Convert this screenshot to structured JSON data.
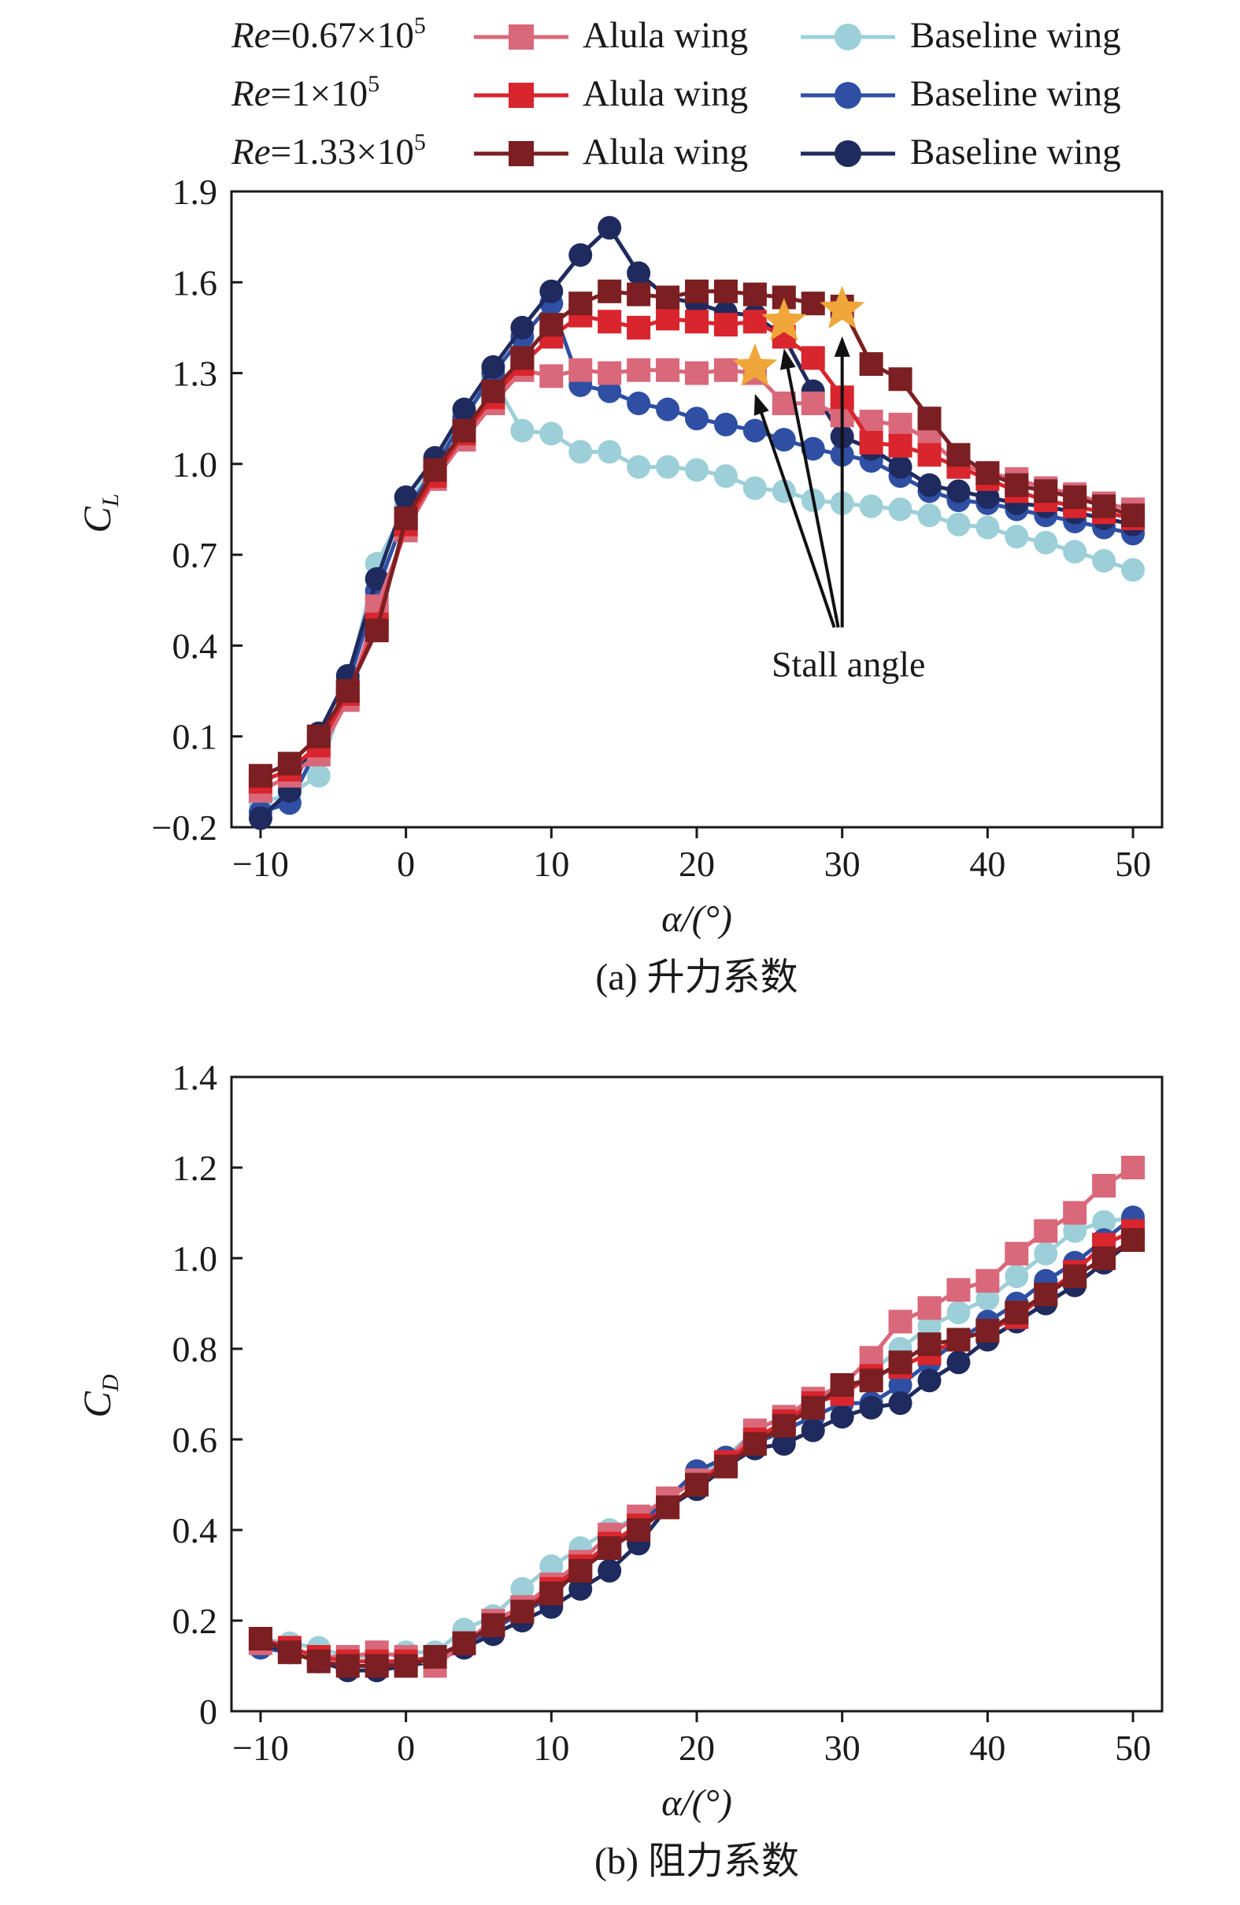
{
  "legend": {
    "rows": [
      {
        "re_prefix": "Re",
        "re_value": "=0.67×10",
        "re_exp": "5",
        "alula_label": "Alula wing",
        "baseline_label": "Baseline wing"
      },
      {
        "re_prefix": "Re",
        "re_value": "=1×10",
        "re_exp": "5",
        "alula_label": "Alula wing",
        "baseline_label": "Baseline wing"
      },
      {
        "re_prefix": "Re",
        "re_value": "=1.33×10",
        "re_exp": "5",
        "alula_label": "Alula wing",
        "baseline_label": "Baseline wing"
      }
    ]
  },
  "colors": {
    "alula": [
      "#d9687a",
      "#d9252d",
      "#7b1f22"
    ],
    "baseline": [
      "#9ccfd8",
      "#2e4fa3",
      "#1f2a5e"
    ],
    "star": "#f0a63a"
  },
  "annotation": {
    "text": "Stall angle"
  },
  "chart_data": [
    {
      "type": "line",
      "caption": "(a) 升力系数",
      "xlabel": "α/(°)",
      "ylabel": "C",
      "ylabel_sub": "L",
      "xlim": [
        -12,
        52
      ],
      "ylim": [
        -0.2,
        1.9
      ],
      "xticks": [
        -10,
        0,
        10,
        20,
        30,
        40,
        50
      ],
      "yticks": [
        -0.2,
        0.1,
        0.4,
        0.7,
        1.0,
        1.3,
        1.6,
        1.9
      ],
      "ytick_labels": [
        "−0.2",
        "0.1",
        "0.4",
        "0.7",
        "1.0",
        "1.3",
        "1.6",
        "1.9"
      ],
      "xtick_labels": [
        "−10",
        "0",
        "10",
        "20",
        "30",
        "40",
        "50"
      ],
      "x": [
        -10,
        -8,
        -6,
        -4,
        -2,
        0,
        2,
        4,
        6,
        8,
        10,
        12,
        14,
        16,
        18,
        20,
        22,
        24,
        26,
        28,
        30,
        32,
        34,
        36,
        38,
        40,
        42,
        44,
        46,
        48,
        50
      ],
      "series": [
        {
          "name": "Re=0.67×10^5 Alula wing",
          "marker": "square",
          "color_index": 0,
          "group": "alula",
          "values": [
            -0.08,
            -0.03,
            0.04,
            0.22,
            0.53,
            0.78,
            0.95,
            1.08,
            1.2,
            1.31,
            1.29,
            1.31,
            1.3,
            1.31,
            1.31,
            1.3,
            1.31,
            1.3,
            1.2,
            1.2,
            1.16,
            1.14,
            1.13,
            1.08,
            1.0,
            0.97,
            0.95,
            0.92,
            0.9,
            0.87,
            0.85
          ]
        },
        {
          "name": "Re=1×10^5 Alula wing",
          "marker": "square",
          "color_index": 1,
          "group": "alula",
          "values": [
            -0.05,
            -0.01,
            0.07,
            0.24,
            0.47,
            0.8,
            0.96,
            1.1,
            1.22,
            1.33,
            1.42,
            1.49,
            1.47,
            1.45,
            1.48,
            1.47,
            1.46,
            1.47,
            1.42,
            1.35,
            1.22,
            1.07,
            1.06,
            1.03,
            0.99,
            0.95,
            0.91,
            0.88,
            0.86,
            0.84,
            0.82
          ]
        },
        {
          "name": "Re=1.33×10^5 Alula wing",
          "marker": "square",
          "color_index": 2,
          "group": "alula",
          "values": [
            -0.03,
            0.01,
            0.1,
            0.25,
            0.45,
            0.82,
            0.98,
            1.11,
            1.24,
            1.35,
            1.46,
            1.53,
            1.57,
            1.56,
            1.55,
            1.57,
            1.57,
            1.56,
            1.55,
            1.53,
            1.52,
            1.33,
            1.28,
            1.15,
            1.03,
            0.97,
            0.93,
            0.91,
            0.89,
            0.86,
            0.83
          ]
        },
        {
          "name": "Re=0.67×10^5 Baseline wing",
          "marker": "circle",
          "color_index": 0,
          "group": "baseline",
          "values": [
            -0.12,
            -0.09,
            -0.03,
            0.28,
            0.67,
            0.86,
            1.0,
            1.16,
            1.28,
            1.11,
            1.1,
            1.04,
            1.04,
            0.99,
            0.99,
            0.98,
            0.96,
            0.92,
            0.91,
            0.88,
            0.87,
            0.86,
            0.85,
            0.83,
            0.8,
            0.79,
            0.76,
            0.74,
            0.71,
            0.68,
            0.65
          ]
        },
        {
          "name": "Re=1×10^5 Baseline wing",
          "marker": "circle",
          "color_index": 1,
          "group": "baseline",
          "values": [
            -0.15,
            -0.12,
            0.07,
            0.27,
            0.58,
            0.84,
            0.99,
            1.15,
            1.3,
            1.42,
            1.53,
            1.26,
            1.24,
            1.2,
            1.18,
            1.15,
            1.13,
            1.11,
            1.08,
            1.05,
            1.03,
            1.01,
            0.96,
            0.91,
            0.88,
            0.87,
            0.85,
            0.83,
            0.81,
            0.79,
            0.77
          ]
        },
        {
          "name": "Re=1.33×10^5 Baseline wing",
          "marker": "circle",
          "color_index": 2,
          "group": "baseline",
          "values": [
            -0.17,
            -0.08,
            0.11,
            0.3,
            0.62,
            0.89,
            1.02,
            1.18,
            1.32,
            1.45,
            1.57,
            1.69,
            1.78,
            1.63,
            1.55,
            1.53,
            1.5,
            1.49,
            1.42,
            1.24,
            1.09,
            1.05,
            0.99,
            0.93,
            0.91,
            0.89,
            0.87,
            0.86,
            0.84,
            0.82,
            0.8
          ]
        }
      ],
      "stall_markers": [
        {
          "x": 24,
          "y": 1.32
        },
        {
          "x": 26,
          "y": 1.47
        },
        {
          "x": 30,
          "y": 1.51
        }
      ],
      "stall_label_position": {
        "x": 30,
        "y": 0.46
      }
    },
    {
      "type": "line",
      "caption": "(b) 阻力系数",
      "xlabel": "α/(°)",
      "ylabel": "C",
      "ylabel_sub": "D",
      "xlim": [
        -12,
        52
      ],
      "ylim": [
        0,
        1.4
      ],
      "xticks": [
        -10,
        0,
        10,
        20,
        30,
        40,
        50
      ],
      "yticks": [
        0,
        0.2,
        0.4,
        0.6,
        0.8,
        1.0,
        1.2,
        1.4
      ],
      "ytick_labels": [
        "0",
        "0.2",
        "0.4",
        "0.6",
        "0.8",
        "1.0",
        "1.2",
        "1.4"
      ],
      "xtick_labels": [
        "−10",
        "0",
        "10",
        "20",
        "30",
        "40",
        "50"
      ],
      "x": [
        -10,
        -8,
        -6,
        -4,
        -2,
        0,
        2,
        4,
        6,
        8,
        10,
        12,
        14,
        16,
        18,
        20,
        22,
        24,
        26,
        28,
        30,
        32,
        34,
        36,
        38,
        40,
        42,
        44,
        46,
        48,
        50
      ],
      "series": [
        {
          "name": "Re=0.67×10^5 Alula wing",
          "marker": "square",
          "color_index": 0,
          "group": "alula",
          "values": [
            0.15,
            0.14,
            0.12,
            0.12,
            0.13,
            0.12,
            0.1,
            0.15,
            0.2,
            0.23,
            0.28,
            0.33,
            0.39,
            0.43,
            0.47,
            0.51,
            0.55,
            0.62,
            0.65,
            0.69,
            0.72,
            0.78,
            0.86,
            0.89,
            0.93,
            0.95,
            1.01,
            1.06,
            1.1,
            1.16,
            1.2
          ]
        },
        {
          "name": "Re=1×10^5 Alula wing",
          "marker": "square",
          "color_index": 1,
          "group": "alula",
          "values": [
            0.16,
            0.14,
            0.12,
            0.11,
            0.11,
            0.11,
            0.12,
            0.15,
            0.19,
            0.22,
            0.27,
            0.32,
            0.37,
            0.41,
            0.45,
            0.5,
            0.55,
            0.6,
            0.64,
            0.68,
            0.7,
            0.74,
            0.76,
            0.79,
            0.82,
            0.84,
            0.87,
            0.92,
            0.97,
            1.03,
            1.06
          ]
        },
        {
          "name": "Re=1.33×10^5 Alula wing",
          "marker": "square",
          "color_index": 2,
          "group": "alula",
          "values": [
            0.16,
            0.13,
            0.11,
            0.1,
            0.1,
            0.1,
            0.12,
            0.15,
            0.19,
            0.22,
            0.26,
            0.31,
            0.36,
            0.4,
            0.45,
            0.5,
            0.54,
            0.59,
            0.63,
            0.67,
            0.72,
            0.73,
            0.77,
            0.81,
            0.82,
            0.84,
            0.88,
            0.92,
            0.96,
            1.0,
            1.04
          ]
        },
        {
          "name": "Re=0.67×10^5 Baseline wing",
          "marker": "circle",
          "color_index": 0,
          "group": "baseline",
          "values": [
            0.16,
            0.15,
            0.14,
            0.12,
            0.12,
            0.13,
            0.13,
            0.18,
            0.21,
            0.27,
            0.32,
            0.36,
            0.4,
            0.43,
            0.47,
            0.52,
            0.56,
            0.62,
            0.65,
            0.68,
            0.7,
            0.75,
            0.8,
            0.85,
            0.88,
            0.91,
            0.96,
            1.01,
            1.06,
            1.08,
            1.09
          ]
        },
        {
          "name": "Re=1×10^5 Baseline wing",
          "marker": "circle",
          "color_index": 1,
          "group": "baseline",
          "values": [
            0.14,
            0.13,
            0.11,
            0.1,
            0.1,
            0.11,
            0.12,
            0.15,
            0.18,
            0.22,
            0.25,
            0.32,
            0.36,
            0.41,
            0.47,
            0.53,
            0.56,
            0.59,
            0.62,
            0.65,
            0.68,
            0.68,
            0.72,
            0.77,
            0.82,
            0.86,
            0.9,
            0.95,
            0.99,
            1.04,
            1.09
          ]
        },
        {
          "name": "Re=1.33×10^5 Baseline wing",
          "marker": "circle",
          "color_index": 2,
          "group": "baseline",
          "values": [
            0.15,
            0.13,
            0.11,
            0.09,
            0.09,
            0.1,
            0.11,
            0.14,
            0.17,
            0.2,
            0.23,
            0.27,
            0.31,
            0.37,
            0.45,
            0.49,
            0.54,
            0.58,
            0.59,
            0.62,
            0.65,
            0.67,
            0.68,
            0.73,
            0.77,
            0.82,
            0.86,
            0.9,
            0.94,
            0.99,
            1.04
          ]
        }
      ]
    }
  ]
}
